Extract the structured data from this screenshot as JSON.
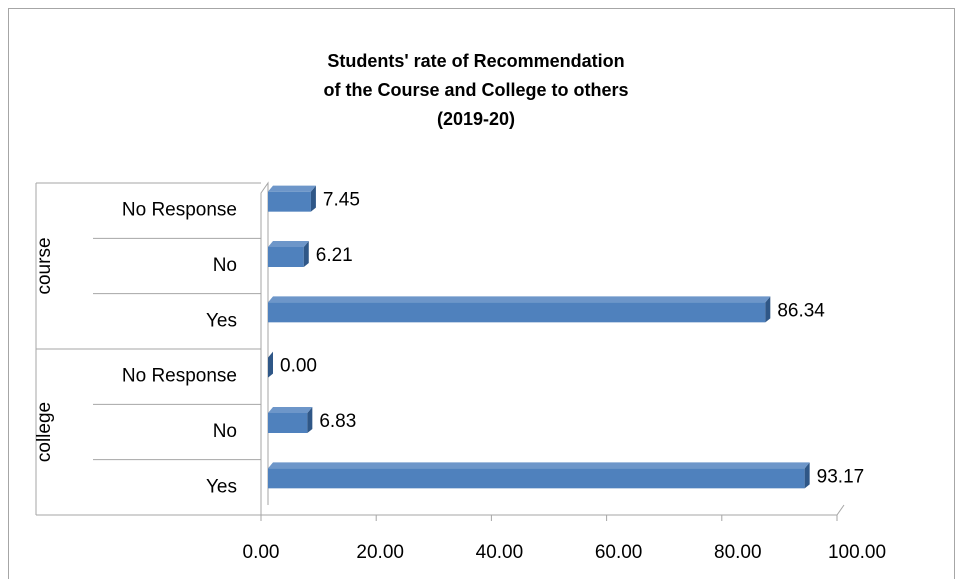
{
  "chart_data": {
    "type": "bar",
    "orientation": "horizontal",
    "title": [
      "Students' rate of Recommendation",
      "of the Course and College to others",
      "(2019-20)"
    ],
    "color": "#4f81bd",
    "groups": [
      {
        "name": "course",
        "categories": [
          "No Response",
          "No",
          "Yes"
        ],
        "values": [
          7.45,
          6.21,
          86.34
        ],
        "value_labels": [
          "7.45",
          "6.21",
          "86.34"
        ]
      },
      {
        "name": "college",
        "categories": [
          "No Response",
          "No",
          "Yes"
        ],
        "values": [
          0,
          6.83,
          93.17
        ],
        "value_labels": [
          "0.00",
          "6.83",
          "93.17"
        ]
      }
    ],
    "xlim": [
      0,
      100
    ],
    "xticks": [
      {
        "value": 0,
        "label": "0.00"
      },
      {
        "value": 20,
        "label": "20.00"
      },
      {
        "value": 40,
        "label": "40.00"
      },
      {
        "value": 60,
        "label": "60.00"
      },
      {
        "value": 80,
        "label": "80.00"
      },
      {
        "value": 100,
        "label": "100.00"
      }
    ]
  }
}
